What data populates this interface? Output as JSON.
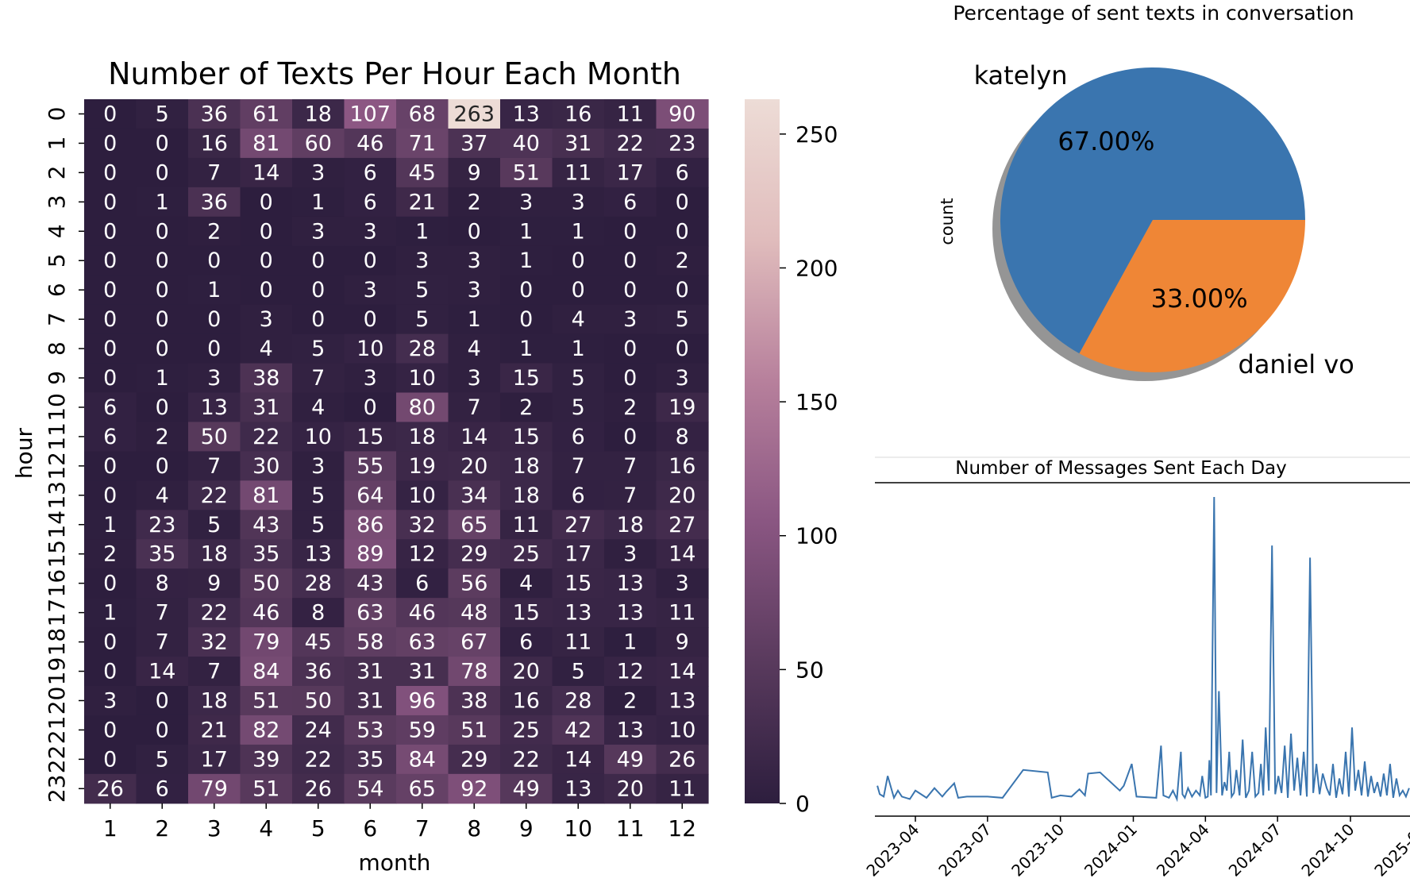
{
  "chart_data": [
    {
      "type": "heatmap",
      "title": "Number of Texts Per Hour Each Month",
      "xlabel": "month",
      "ylabel": "hour",
      "x_categories": [
        "1",
        "2",
        "3",
        "4",
        "5",
        "6",
        "7",
        "8",
        "9",
        "10",
        "11",
        "12"
      ],
      "y_categories": [
        "0",
        "1",
        "2",
        "3",
        "4",
        "5",
        "6",
        "7",
        "8",
        "9",
        "10",
        "11",
        "12",
        "13",
        "14",
        "15",
        "16",
        "17",
        "18",
        "19",
        "20",
        "21",
        "22",
        "23"
      ],
      "values": [
        [
          0,
          5,
          36,
          61,
          18,
          107,
          68,
          263,
          13,
          16,
          11,
          90
        ],
        [
          0,
          0,
          16,
          81,
          60,
          46,
          71,
          37,
          40,
          31,
          22,
          23
        ],
        [
          0,
          0,
          7,
          14,
          3,
          6,
          45,
          9,
          51,
          11,
          17,
          6
        ],
        [
          0,
          1,
          36,
          0,
          1,
          6,
          21,
          2,
          3,
          3,
          6,
          0
        ],
        [
          0,
          0,
          2,
          0,
          3,
          3,
          1,
          0,
          1,
          1,
          0,
          0
        ],
        [
          0,
          0,
          0,
          0,
          0,
          0,
          3,
          3,
          1,
          0,
          0,
          2
        ],
        [
          0,
          0,
          1,
          0,
          0,
          3,
          5,
          3,
          0,
          0,
          0,
          0
        ],
        [
          0,
          0,
          0,
          3,
          0,
          0,
          5,
          1,
          0,
          4,
          3,
          5
        ],
        [
          0,
          0,
          0,
          4,
          5,
          10,
          28,
          4,
          1,
          1,
          0,
          0
        ],
        [
          0,
          1,
          3,
          38,
          7,
          3,
          10,
          3,
          15,
          5,
          0,
          3
        ],
        [
          6,
          0,
          13,
          31,
          4,
          0,
          80,
          7,
          2,
          5,
          2,
          19
        ],
        [
          6,
          2,
          50,
          22,
          10,
          15,
          18,
          14,
          15,
          6,
          0,
          8
        ],
        [
          0,
          0,
          7,
          30,
          3,
          55,
          19,
          20,
          18,
          7,
          7,
          16
        ],
        [
          0,
          4,
          22,
          81,
          5,
          64,
          10,
          34,
          18,
          6,
          7,
          20
        ],
        [
          1,
          23,
          5,
          43,
          5,
          86,
          32,
          65,
          11,
          27,
          18,
          27
        ],
        [
          2,
          35,
          18,
          35,
          13,
          89,
          12,
          29,
          25,
          17,
          3,
          14
        ],
        [
          0,
          8,
          9,
          50,
          28,
          43,
          6,
          56,
          4,
          15,
          13,
          3
        ],
        [
          1,
          7,
          22,
          46,
          8,
          63,
          46,
          48,
          15,
          13,
          13,
          11
        ],
        [
          0,
          7,
          32,
          79,
          45,
          58,
          63,
          67,
          6,
          11,
          1,
          9
        ],
        [
          0,
          14,
          7,
          84,
          36,
          31,
          31,
          78,
          20,
          5,
          12,
          14
        ],
        [
          3,
          0,
          18,
          51,
          50,
          31,
          96,
          38,
          16,
          28,
          2,
          13
        ],
        [
          0,
          0,
          21,
          82,
          24,
          53,
          59,
          51,
          25,
          42,
          13,
          10
        ],
        [
          0,
          5,
          17,
          39,
          22,
          35,
          84,
          29,
          22,
          14,
          49,
          26
        ],
        [
          26,
          6,
          79,
          51,
          26,
          54,
          65,
          92,
          49,
          13,
          20,
          11
        ]
      ],
      "colorbar": {
        "range": [
          0,
          263
        ],
        "ticks": [
          "0",
          "50",
          "100",
          "150",
          "200",
          "250"
        ],
        "colors": [
          "#2d1e3e",
          "#593a5d",
          "#8a5682",
          "#b7809c",
          "#e0bcbc",
          "#eddcd6"
        ]
      }
    },
    {
      "type": "pie",
      "title": "Percentage of sent texts in conversation",
      "ylabel": "count",
      "labels": [
        "katelyn",
        "daniel vo"
      ],
      "values": [
        67.0,
        33.0
      ],
      "autopct": [
        "67.00%",
        "33.00%"
      ],
      "colors": [
        "#3a75af",
        "#ef8636"
      ],
      "shadow": true
    },
    {
      "type": "line",
      "title": "Number of Messages Sent Each Day",
      "xlabel": "",
      "ylabel": "",
      "x_tick_labels": [
        "2023-04",
        "2023-07",
        "2023-10",
        "2024-01",
        "2024-04",
        "2024-07",
        "2024-10",
        "2025-01"
      ],
      "color": "#3a75af",
      "x": [
        "2023-02-12",
        "2023-02-15",
        "2023-02-20",
        "2023-02-25",
        "2023-03-05",
        "2023-03-10",
        "2023-03-15",
        "2023-03-25",
        "2023-04-01",
        "2023-04-15",
        "2023-04-25",
        "2023-05-05",
        "2023-05-10",
        "2023-05-20",
        "2023-05-25",
        "2023-06-05",
        "2023-07-01",
        "2023-07-20",
        "2023-08-15",
        "2023-09-15",
        "2023-09-20",
        "2023-10-01",
        "2023-10-15",
        "2023-10-25",
        "2023-11-01",
        "2023-11-05",
        "2023-11-20",
        "2023-12-15",
        "2023-12-20",
        "2023-12-30",
        "2024-01-05",
        "2024-01-30",
        "2024-02-05",
        "2024-02-08",
        "2024-02-15",
        "2024-02-20",
        "2024-02-25",
        "2024-03-01",
        "2024-03-03",
        "2024-03-06",
        "2024-03-10",
        "2024-03-15",
        "2024-03-20",
        "2024-03-25",
        "2024-03-28",
        "2024-04-01",
        "2024-04-04",
        "2024-04-06",
        "2024-04-08",
        "2024-04-12",
        "2024-04-15",
        "2024-04-18",
        "2024-04-22",
        "2024-04-25",
        "2024-04-28",
        "2024-05-01",
        "2024-05-04",
        "2024-05-07",
        "2024-05-10",
        "2024-05-14",
        "2024-05-18",
        "2024-05-22",
        "2024-05-26",
        "2024-05-30",
        "2024-06-03",
        "2024-06-07",
        "2024-06-10",
        "2024-06-13",
        "2024-06-16",
        "2024-06-20",
        "2024-06-24",
        "2024-06-28",
        "2024-07-02",
        "2024-07-06",
        "2024-07-10",
        "2024-07-14",
        "2024-07-18",
        "2024-07-22",
        "2024-07-26",
        "2024-07-30",
        "2024-08-03",
        "2024-08-07",
        "2024-08-11",
        "2024-08-15",
        "2024-08-19",
        "2024-08-23",
        "2024-08-27",
        "2024-09-01",
        "2024-09-05",
        "2024-09-09",
        "2024-09-13",
        "2024-09-17",
        "2024-09-21",
        "2024-09-25",
        "2024-09-29",
        "2024-10-03",
        "2024-10-07",
        "2024-10-11",
        "2024-10-15",
        "2024-10-19",
        "2024-10-23",
        "2024-10-27",
        "2024-10-31",
        "2024-11-04",
        "2024-11-08",
        "2024-11-12",
        "2024-11-16",
        "2024-11-20",
        "2024-11-24",
        "2024-11-28",
        "2024-12-02",
        "2024-12-06",
        "2024-12-10",
        "2024-12-14",
        "2024-12-18",
        "2024-12-22",
        "2024-12-26",
        "2024-12-30"
      ],
      "values": [
        12,
        5,
        3,
        20,
        2,
        8,
        3,
        1,
        8,
        2,
        10,
        3,
        7,
        14,
        2,
        3,
        3,
        2,
        25,
        23,
        2,
        4,
        3,
        9,
        4,
        22,
        23,
        8,
        12,
        30,
        3,
        2,
        45,
        4,
        2,
        8,
        1,
        40,
        5,
        2,
        10,
        3,
        8,
        4,
        20,
        2,
        3,
        33,
        4,
        250,
        6,
        90,
        4,
        15,
        8,
        40,
        3,
        6,
        25,
        4,
        50,
        2,
        8,
        40,
        3,
        6,
        30,
        4,
        60,
        8,
        210,
        5,
        20,
        6,
        45,
        2,
        55,
        8,
        35,
        4,
        40,
        3,
        200,
        6,
        30,
        5,
        22,
        10,
        4,
        30,
        2,
        18,
        5,
        40,
        3,
        60,
        8,
        25,
        4,
        32,
        3,
        20,
        6,
        15,
        3,
        22,
        4,
        30,
        2,
        18,
        4,
        8,
        3,
        10,
        5,
        40,
        6,
        70
      ]
    }
  ]
}
